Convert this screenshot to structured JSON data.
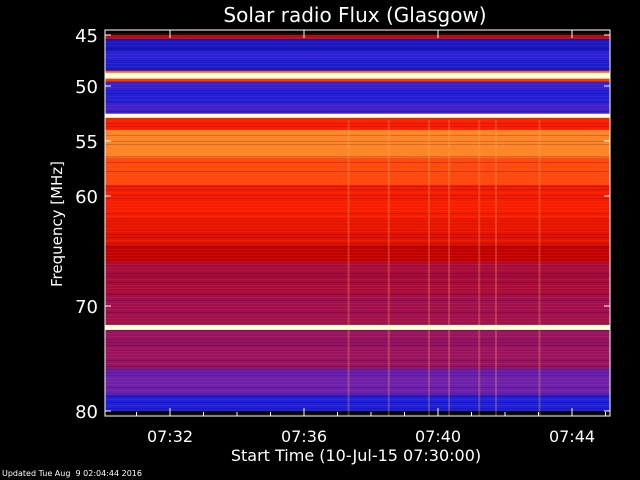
{
  "chart_data": {
    "type": "heatmap",
    "title": "Solar radio Flux (Glasgow)",
    "xlabel": "Start Time (10-Jul-15 07:30:00)",
    "ylabel": "Frequency [MHz]",
    "x_tick_labels": [
      "07:32",
      "07:36",
      "07:40",
      "07:44"
    ],
    "x_tick_minutes": [
      32,
      36,
      40,
      44
    ],
    "y_tick_labels": [
      "45",
      "50",
      "55",
      "60",
      "70",
      "80"
    ],
    "y_tick_values": [
      45,
      50,
      55,
      60,
      70,
      80
    ],
    "x_range_minutes": [
      30,
      45
    ],
    "y_range_mhz": [
      45,
      80
    ],
    "color_scale": [
      "#000078",
      "#2020e0",
      "#8020a0",
      "#c00000",
      "#ff2000",
      "#ffa030",
      "#ffffd0"
    ],
    "frequency_bands": [
      {
        "from": 45.0,
        "to": 45.4,
        "level": 0.55
      },
      {
        "from": 45.4,
        "to": 46.6,
        "level": 0.12
      },
      {
        "from": 46.6,
        "to": 47.6,
        "level": 0.18
      },
      {
        "from": 47.6,
        "to": 48.5,
        "level": 0.14
      },
      {
        "from": 48.5,
        "to": 48.9,
        "level": 0.75
      },
      {
        "from": 48.9,
        "to": 49.3,
        "level": 1.0
      },
      {
        "from": 49.3,
        "to": 49.6,
        "level": 0.7
      },
      {
        "from": 49.6,
        "to": 50.5,
        "level": 0.2
      },
      {
        "from": 50.5,
        "to": 51.5,
        "level": 0.16
      },
      {
        "from": 51.5,
        "to": 52.6,
        "level": 0.22
      },
      {
        "from": 52.6,
        "to": 52.9,
        "level": 0.92
      },
      {
        "from": 52.9,
        "to": 54.0,
        "level": 0.66
      },
      {
        "from": 54.0,
        "to": 56.5,
        "level": 0.8
      },
      {
        "from": 56.5,
        "to": 59.0,
        "level": 0.72
      },
      {
        "from": 59.0,
        "to": 62.0,
        "level": 0.65
      },
      {
        "from": 62.0,
        "to": 64.5,
        "level": 0.6
      },
      {
        "from": 64.5,
        "to": 66.0,
        "level": 0.5
      },
      {
        "from": 66.0,
        "to": 69.0,
        "level": 0.44
      },
      {
        "from": 69.0,
        "to": 71.8,
        "level": 0.42
      },
      {
        "from": 71.8,
        "to": 72.3,
        "level": 0.97
      },
      {
        "from": 72.3,
        "to": 76.0,
        "level": 0.4
      },
      {
        "from": 76.0,
        "to": 78.5,
        "level": 0.3
      },
      {
        "from": 78.5,
        "to": 80.0,
        "level": 0.16
      }
    ],
    "bright_lines_mhz": [
      48.9,
      52.7,
      72.0
    ],
    "vertical_streaks_minutes": [
      37.3,
      38.5,
      39.7,
      40.3,
      41.2,
      41.7,
      43.0
    ]
  },
  "footer": {
    "text": "Updated Tue Aug  9 02:04:44 2016"
  }
}
